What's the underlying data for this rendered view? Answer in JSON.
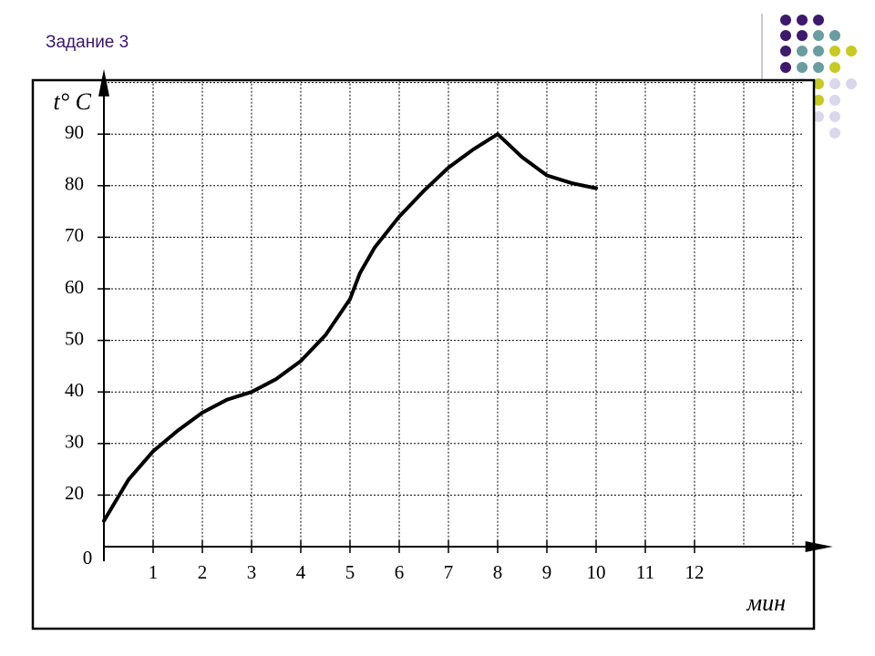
{
  "header": {
    "title": "Задание 3"
  },
  "chart_data": {
    "type": "line",
    "x_label": "мин",
    "y_label": "t° C",
    "origin_label": "0",
    "x": [
      0,
      0.5,
      1,
      1.5,
      2,
      2.5,
      3,
      3.5,
      4,
      4.5,
      5,
      5.2,
      5.5,
      6,
      6.5,
      7,
      7.5,
      8,
      8.5,
      9,
      9.5,
      10
    ],
    "series": [
      {
        "color": "#000000",
        "values": [
          15,
          23,
          28.5,
          32.5,
          36,
          38.5,
          40,
          42.5,
          46,
          51,
          58,
          63,
          68,
          74,
          79,
          83.5,
          87,
          90,
          85.5,
          82,
          80.5,
          79.5
        ]
      }
    ],
    "xlim": [
      0,
      14.4
    ],
    "ylim": [
      10,
      100.5
    ],
    "xticks": [
      1,
      2,
      3,
      4,
      5,
      6,
      7,
      8,
      9,
      10,
      11,
      12
    ],
    "yticks": [
      20,
      30,
      40,
      50,
      60,
      70,
      80,
      90
    ],
    "xgrid": [
      1,
      2,
      3,
      4,
      5,
      6,
      7,
      8,
      9,
      10,
      11,
      12,
      13,
      14
    ],
    "ygrid": [
      20,
      30,
      40,
      50,
      60,
      70,
      80,
      90,
      100
    ],
    "grid": true
  }
}
